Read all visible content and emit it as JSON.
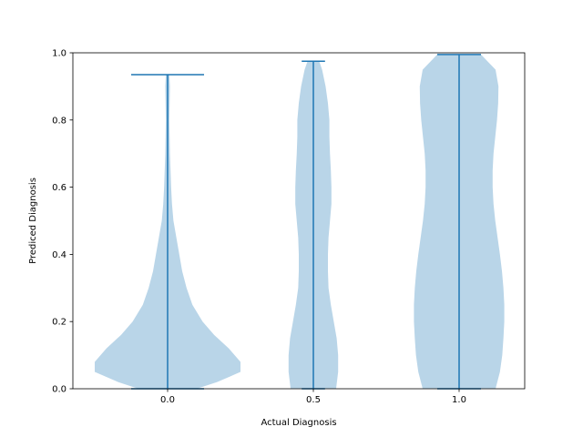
{
  "chart_data": {
    "type": "violin",
    "xlabel": "Actual Diagnosis",
    "ylabel": "Prediced Diagnosis",
    "x_tick_labels": [
      "0.0",
      "0.5",
      "1.0"
    ],
    "y_tick_labels": [
      "0.0",
      "0.2",
      "0.4",
      "0.6",
      "0.8",
      "1.0"
    ],
    "x_positions": [
      0.0,
      0.5,
      1.0
    ],
    "xlim": [
      -0.325,
      1.225
    ],
    "ylim": [
      0.0,
      1.0
    ],
    "grid": false,
    "colors": {
      "body": "#b9d5e8",
      "lines": "#1f77b4"
    },
    "violins": [
      {
        "position": 0.0,
        "min": 0.0,
        "max": 0.935,
        "cap_halfwidth": 0.125,
        "profile": [
          [
            0.0,
            0.1
          ],
          [
            0.02,
            0.17
          ],
          [
            0.05,
            0.25
          ],
          [
            0.08,
            0.25
          ],
          [
            0.12,
            0.21
          ],
          [
            0.16,
            0.16
          ],
          [
            0.2,
            0.12
          ],
          [
            0.25,
            0.085
          ],
          [
            0.3,
            0.065
          ],
          [
            0.35,
            0.05
          ],
          [
            0.4,
            0.04
          ],
          [
            0.45,
            0.03
          ],
          [
            0.5,
            0.02
          ],
          [
            0.55,
            0.015
          ],
          [
            0.6,
            0.012
          ],
          [
            0.65,
            0.01
          ],
          [
            0.7,
            0.008
          ],
          [
            0.75,
            0.007
          ],
          [
            0.8,
            0.006
          ],
          [
            0.85,
            0.007
          ],
          [
            0.9,
            0.008
          ],
          [
            0.935,
            0.006
          ]
        ]
      },
      {
        "position": 0.5,
        "min": 0.0,
        "max": 0.975,
        "cap_halfwidth": 0.04,
        "profile": [
          [
            0.0,
            0.078
          ],
          [
            0.05,
            0.085
          ],
          [
            0.1,
            0.085
          ],
          [
            0.15,
            0.08
          ],
          [
            0.2,
            0.07
          ],
          [
            0.25,
            0.06
          ],
          [
            0.3,
            0.052
          ],
          [
            0.35,
            0.05
          ],
          [
            0.4,
            0.05
          ],
          [
            0.45,
            0.052
          ],
          [
            0.5,
            0.057
          ],
          [
            0.55,
            0.062
          ],
          [
            0.6,
            0.062
          ],
          [
            0.65,
            0.06
          ],
          [
            0.7,
            0.057
          ],
          [
            0.75,
            0.055
          ],
          [
            0.8,
            0.055
          ],
          [
            0.85,
            0.05
          ],
          [
            0.9,
            0.042
          ],
          [
            0.95,
            0.03
          ],
          [
            0.975,
            0.02
          ]
        ]
      },
      {
        "position": 1.0,
        "min": 0.0,
        "max": 0.995,
        "cap_halfwidth": 0.075,
        "profile": [
          [
            0.0,
            0.125
          ],
          [
            0.05,
            0.14
          ],
          [
            0.1,
            0.148
          ],
          [
            0.15,
            0.152
          ],
          [
            0.2,
            0.155
          ],
          [
            0.25,
            0.155
          ],
          [
            0.3,
            0.152
          ],
          [
            0.35,
            0.147
          ],
          [
            0.4,
            0.14
          ],
          [
            0.45,
            0.132
          ],
          [
            0.5,
            0.124
          ],
          [
            0.55,
            0.118
          ],
          [
            0.6,
            0.115
          ],
          [
            0.65,
            0.115
          ],
          [
            0.7,
            0.118
          ],
          [
            0.75,
            0.124
          ],
          [
            0.8,
            0.13
          ],
          [
            0.85,
            0.134
          ],
          [
            0.9,
            0.135
          ],
          [
            0.95,
            0.125
          ],
          [
            0.995,
            0.075
          ]
        ]
      }
    ]
  }
}
